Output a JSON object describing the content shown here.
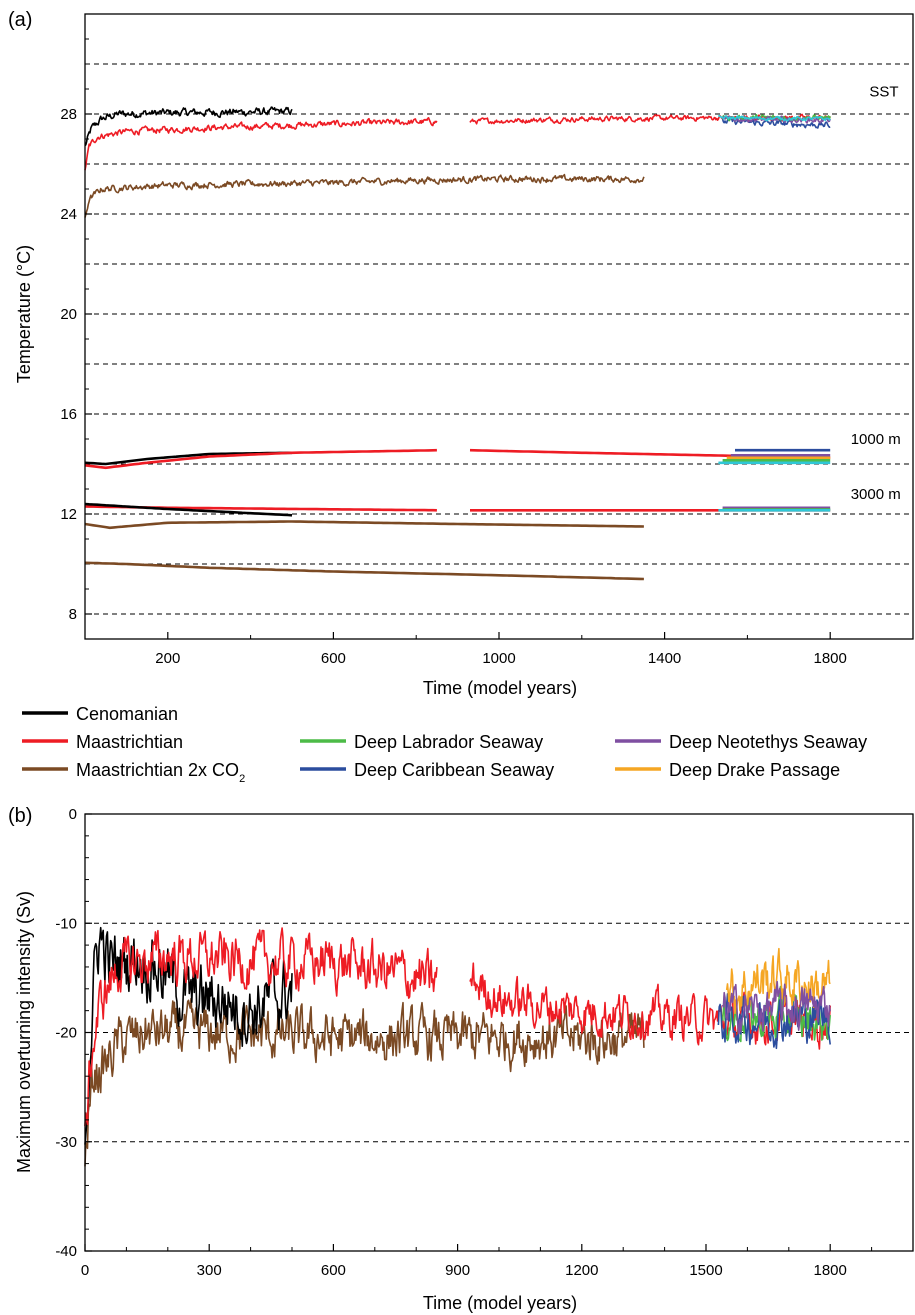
{
  "colors": {
    "Cenomanian": "#000000",
    "Maastrichtian": "#ee1c24",
    "Maastrichtian 2x CO2": "#7b4a24",
    "Deep Labrador Seaway": "#4cbb47",
    "Deep Caribbean Seaway": "#2b4d9e",
    "Deep Neotethys Seaway": "#7f4fa1",
    "Deep Drake Passage": "#f5a623",
    "Cyan": "#2fc7d6"
  },
  "legend": {
    "cenomanian": "Cenomanian",
    "maastrichtian": "Maastrichtian",
    "maastrichtian_co2_prefix": "Maastrichtian 2x CO",
    "maastrichtian_co2_sub": "2",
    "labrador": "Deep Labrador Seaway",
    "caribbean": "Deep Caribbean Seaway",
    "neotethys": "Deep Neotethys Seaway",
    "drake": "Deep Drake Passage"
  },
  "chart_data": [
    {
      "panel_label": "(a)",
      "type": "line",
      "xlabel": "Time (model years)",
      "ylabel": "Temperature (°C)",
      "xlim": [
        0,
        2000
      ],
      "ylim": [
        7,
        32
      ],
      "xticks": [
        200,
        600,
        1000,
        1400,
        1800
      ],
      "xticks_minor": [
        400,
        800,
        1200,
        1600
      ],
      "yticks": [
        8,
        12,
        16,
        20,
        24,
        28
      ],
      "gridlines_dashed": [
        8,
        10,
        12,
        14,
        16,
        18,
        20,
        22,
        24,
        26,
        28,
        30
      ],
      "annotations": [
        {
          "text": "SST",
          "x": 1930,
          "y": 28.7
        },
        {
          "text": "1000 m",
          "x": 1910,
          "y": 14.8
        },
        {
          "text": "3000 m",
          "x": 1910,
          "y": 12.6
        }
      ],
      "series": [
        {
          "name": "Cenomanian",
          "level": "SST",
          "noise": 0.12,
          "points": [
            [
              0,
              26.7
            ],
            [
              15,
              27.4
            ],
            [
              40,
              27.8
            ],
            [
              80,
              28.0
            ],
            [
              200,
              28.05
            ],
            [
              500,
              28.1
            ]
          ]
        },
        {
          "name": "Maastrichtian",
          "level": "SST",
          "noise": 0.1,
          "points": [
            [
              0,
              25.8
            ],
            [
              10,
              26.7
            ],
            [
              30,
              27.1
            ],
            [
              100,
              27.3
            ],
            [
              300,
              27.45
            ],
            [
              600,
              27.6
            ],
            [
              850,
              27.7
            ]
          ]
        },
        {
          "name": "Maastrichtian",
          "level": "SST",
          "noise": 0.08,
          "points": [
            [
              930,
              27.7
            ],
            [
              1200,
              27.8
            ],
            [
              1550,
              27.85
            ],
            [
              1800,
              27.85
            ]
          ]
        },
        {
          "name": "Maastrichtian 2x CO2",
          "level": "SST",
          "noise": 0.1,
          "points": [
            [
              0,
              23.8
            ],
            [
              10,
              24.6
            ],
            [
              40,
              25.0
            ],
            [
              200,
              25.15
            ],
            [
              600,
              25.25
            ],
            [
              800,
              25.35
            ],
            [
              1000,
              25.4
            ],
            [
              1350,
              25.4
            ]
          ]
        },
        {
          "name": "Deep Caribbean Seaway",
          "level": "SST",
          "noise": 0.1,
          "points": [
            [
              1540,
              27.7
            ],
            [
              1800,
              27.55
            ]
          ]
        },
        {
          "name": "Deep Labrador Seaway",
          "level": "SST",
          "noise": 0.08,
          "points": [
            [
              1540,
              27.85
            ],
            [
              1800,
              27.85
            ]
          ]
        },
        {
          "name": "Deep Neotethys Seaway",
          "level": "SST",
          "noise": 0.08,
          "points": [
            [
              1540,
              27.8
            ],
            [
              1800,
              27.75
            ]
          ]
        },
        {
          "name": "Cyan",
          "level": "SST",
          "noise": 0.06,
          "points": [
            [
              1530,
              27.85
            ],
            [
              1800,
              27.8
            ]
          ]
        },
        {
          "name": "Cenomanian",
          "level": "1000 m",
          "points": [
            [
              0,
              14.05
            ],
            [
              50,
              14.0
            ],
            [
              150,
              14.2
            ],
            [
              300,
              14.4
            ],
            [
              500,
              14.45
            ]
          ]
        },
        {
          "name": "Maastrichtian",
          "level": "1000 m",
          "points": [
            [
              0,
              13.95
            ],
            [
              50,
              13.85
            ],
            [
              150,
              14.05
            ],
            [
              300,
              14.3
            ],
            [
              500,
              14.45
            ],
            [
              850,
              14.55
            ]
          ]
        },
        {
          "name": "Maastrichtian",
          "level": "1000 m",
          "points": [
            [
              930,
              14.55
            ],
            [
              1200,
              14.45
            ],
            [
              1500,
              14.35
            ],
            [
              1800,
              14.25
            ]
          ]
        },
        {
          "name": "Deep Caribbean Seaway",
          "level": "1000 m",
          "points": [
            [
              1570,
              14.55
            ],
            [
              1800,
              14.55
            ]
          ]
        },
        {
          "name": "Deep Neotethys Seaway",
          "level": "1000 m",
          "points": [
            [
              1560,
              14.35
            ],
            [
              1800,
              14.35
            ]
          ]
        },
        {
          "name": "Deep Drake Passage",
          "level": "1000 m",
          "points": [
            [
              1550,
              14.25
            ],
            [
              1800,
              14.25
            ]
          ]
        },
        {
          "name": "Deep Labrador Seaway",
          "level": "1000 m",
          "points": [
            [
              1540,
              14.15
            ],
            [
              1800,
              14.15
            ]
          ]
        },
        {
          "name": "Cyan",
          "level": "1000 m",
          "points": [
            [
              1530,
              14.05
            ],
            [
              1800,
              14.05
            ]
          ]
        },
        {
          "name": "Maastrichtian",
          "level": "3000 m",
          "points": [
            [
              0,
              12.3
            ],
            [
              200,
              12.25
            ],
            [
              850,
              12.15
            ]
          ]
        },
        {
          "name": "Maastrichtian",
          "level": "3000 m",
          "points": [
            [
              930,
              12.15
            ],
            [
              1800,
              12.15
            ]
          ]
        },
        {
          "name": "Cenomanian",
          "level": "3000 m",
          "points": [
            [
              0,
              12.4
            ],
            [
              200,
              12.2
            ],
            [
              500,
              11.95
            ]
          ]
        },
        {
          "name": "Deep Neotethys Seaway",
          "level": "3000 m",
          "points": [
            [
              1540,
              12.25
            ],
            [
              1800,
              12.25
            ]
          ]
        },
        {
          "name": "Deep Labrador Seaway",
          "level": "3000 m",
          "points": [
            [
              1540,
              12.18
            ],
            [
              1800,
              12.18
            ]
          ]
        },
        {
          "name": "Cyan",
          "level": "3000 m",
          "points": [
            [
              1530,
              12.15
            ],
            [
              1800,
              12.15
            ]
          ]
        },
        {
          "name": "Maastrichtian 2x CO2",
          "level": "1000 m",
          "points": [
            [
              0,
              11.6
            ],
            [
              60,
              11.45
            ],
            [
              200,
              11.65
            ],
            [
              500,
              11.7
            ],
            [
              900,
              11.6
            ],
            [
              1350,
              11.5
            ]
          ]
        },
        {
          "name": "Maastrichtian 2x CO2",
          "level": "3000 m",
          "points": [
            [
              0,
              10.05
            ],
            [
              100,
              10.0
            ],
            [
              300,
              9.85
            ],
            [
              600,
              9.7
            ],
            [
              1000,
              9.55
            ],
            [
              1350,
              9.4
            ]
          ]
        }
      ]
    },
    {
      "panel_label": "(b)",
      "type": "line",
      "xlabel": "Time (model years)",
      "ylabel": "Maximum overturning intensity (Sv)",
      "xlim": [
        0,
        2000
      ],
      "ylim": [
        -40,
        0
      ],
      "xticks": [
        0,
        300,
        600,
        900,
        1200,
        1500,
        1800
      ],
      "xticks_minor": [
        100,
        200,
        400,
        500,
        700,
        800,
        1000,
        1100,
        1300,
        1400,
        1600,
        1700,
        1900
      ],
      "yticks": [
        -40,
        -30,
        -20,
        -10,
        0
      ],
      "gridlines_dashed": [
        -30,
        -20,
        -10
      ],
      "series": [
        {
          "name": "Maastrichtian 2x CO2",
          "noise": 1.8,
          "points": [
            [
              0,
              -32
            ],
            [
              8,
              -28
            ],
            [
              20,
              -24
            ],
            [
              50,
              -23
            ],
            [
              80,
              -21
            ],
            [
              150,
              -20
            ],
            [
              300,
              -20
            ],
            [
              600,
              -20.5
            ],
            [
              900,
              -20.5
            ],
            [
              1200,
              -20.5
            ],
            [
              1350,
              -20.5
            ]
          ]
        },
        {
          "name": "Cenomanian",
          "noise": 2.4,
          "points": [
            [
              0,
              -30
            ],
            [
              10,
              -22
            ],
            [
              25,
              -14
            ],
            [
              35,
              -11
            ],
            [
              60,
              -14
            ],
            [
              120,
              -13
            ],
            [
              180,
              -14
            ],
            [
              250,
              -17
            ],
            [
              330,
              -17
            ],
            [
              400,
              -18
            ],
            [
              450,
              -17
            ],
            [
              500,
              -16
            ]
          ]
        },
        {
          "name": "Maastrichtian",
          "noise": 1.8,
          "points": [
            [
              0,
              -30
            ],
            [
              15,
              -22
            ],
            [
              40,
              -17
            ],
            [
              80,
              -14
            ],
            [
              200,
              -13
            ],
            [
              400,
              -13.5
            ],
            [
              600,
              -13.5
            ],
            [
              750,
              -14.5
            ],
            [
              850,
              -15.5
            ]
          ]
        },
        {
          "name": "Maastrichtian",
          "noise": 1.5,
          "points": [
            [
              930,
              -15
            ],
            [
              1000,
              -17
            ],
            [
              1200,
              -18
            ],
            [
              1400,
              -18.5
            ],
            [
              1550,
              -19
            ],
            [
              1800,
              -19
            ]
          ]
        },
        {
          "name": "Deep Labrador Seaway",
          "noise": 1.6,
          "points": [
            [
              1540,
              -18.5
            ],
            [
              1800,
              -19
            ]
          ]
        },
        {
          "name": "Deep Caribbean Seaway",
          "noise": 1.6,
          "points": [
            [
              1530,
              -19
            ],
            [
              1800,
              -18.5
            ]
          ]
        },
        {
          "name": "Deep Drake Passage",
          "noise": 1.9,
          "points": [
            [
              1550,
              -16.5
            ],
            [
              1650,
              -15
            ],
            [
              1800,
              -16
            ]
          ]
        },
        {
          "name": "Deep Neotethys Seaway",
          "noise": 1.5,
          "points": [
            [
              1540,
              -18
            ],
            [
              1800,
              -17.5
            ]
          ]
        }
      ]
    }
  ]
}
